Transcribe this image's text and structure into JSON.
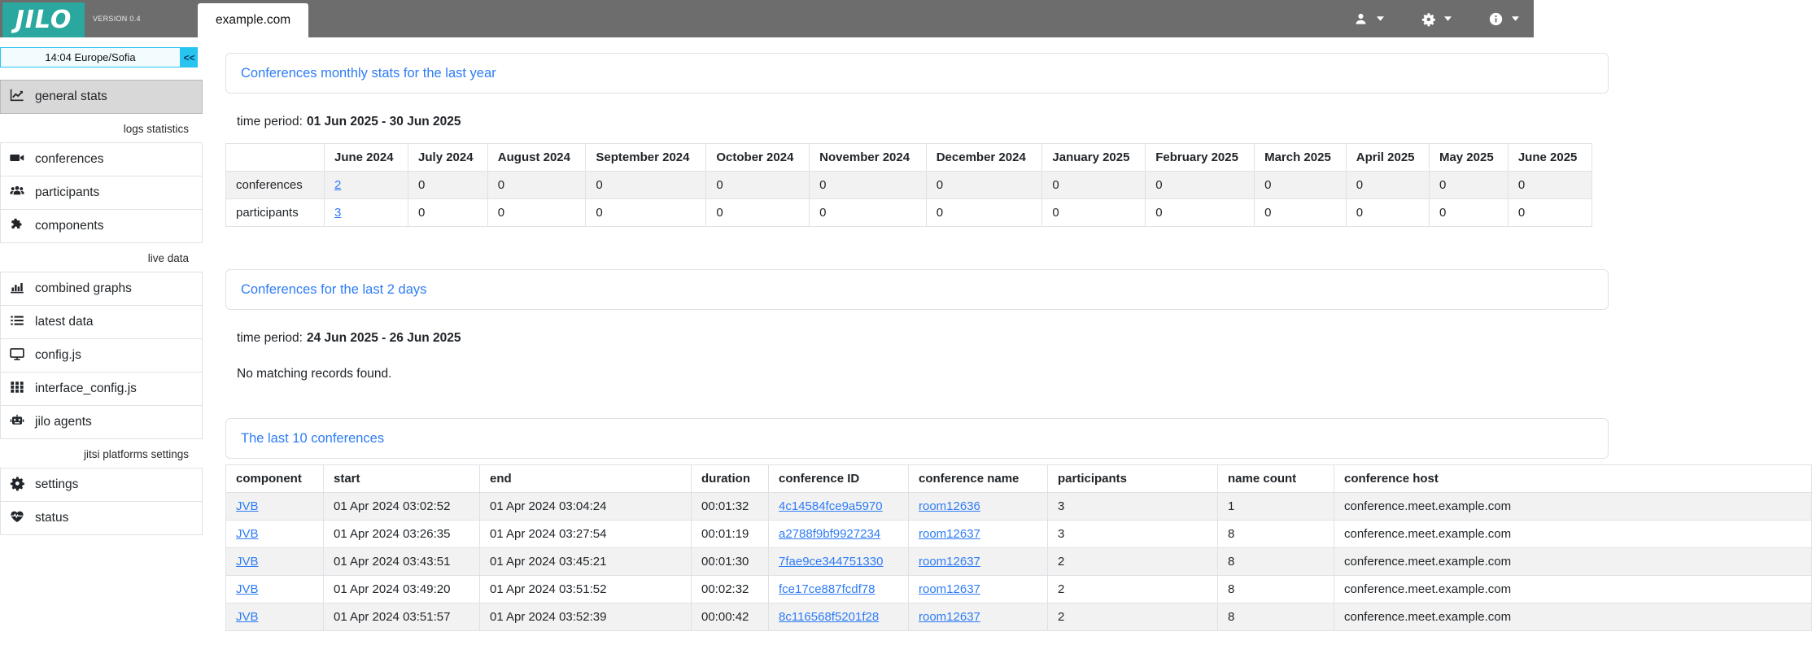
{
  "app": {
    "logo_text": "JILO",
    "version": "VERSION 0.4",
    "platform_tab": "example.com",
    "colors": {
      "topbar_gray": "#6d6d6d",
      "logo_teal": "#2aa79e",
      "accent_blue": "#2e7cf6",
      "collapse_cyan": "#27c4f0",
      "row_stripe": "#f2f2f2",
      "active_item_gray": "#d8d8d8"
    },
    "topbar_icons": [
      "user-icon",
      "gear-icon",
      "info-icon",
      "caret-down-icon"
    ]
  },
  "sidebar": {
    "clock": "14:04  Europe/Sofia",
    "collapse_button": "<<",
    "section_labels": {
      "logs_statistics": "logs statistics",
      "live_data": "live data",
      "jitsi_platforms_settings": "jitsi platforms settings"
    },
    "items": {
      "general_stats": "general stats",
      "conferences": "conferences",
      "participants": "participants",
      "components": "components",
      "combined_graphs": "combined graphs",
      "latest_data": "latest data",
      "config_js": "config.js",
      "interface_config_js": "interface_config.js",
      "jilo_agents": "jilo agents",
      "settings": "settings",
      "status": "status"
    },
    "item_icons": {
      "general_stats": "line-chart-icon",
      "conferences": "video-camera-icon",
      "participants": "users-icon",
      "components": "puzzle-icon",
      "combined_graphs": "bar-chart-icon",
      "latest_data": "list-icon",
      "config_js": "monitor-icon",
      "interface_config_js": "grid-icon",
      "jilo_agents": "robot-icon",
      "settings": "gear-icon",
      "status": "heart-pulse-icon"
    },
    "active_item": "general_stats"
  },
  "main": {
    "monthly_stats": {
      "title": "Conferences monthly stats for the last year",
      "time_period_label": "time period:",
      "time_period_value": "01 Jun 2025 - 30 Jun 2025",
      "table": {
        "headers": [
          "",
          "June 2024",
          "July 2024",
          "August 2024",
          "September 2024",
          "October 2024",
          "November 2024",
          "December 2024",
          "January 2025",
          "February 2025",
          "March 2025",
          "April 2025",
          "May 2025",
          "June 2025"
        ],
        "rows": [
          [
            "conferences",
            {
              "text": "2",
              "link": true
            },
            "0",
            "0",
            "0",
            "0",
            "0",
            "0",
            "0",
            "0",
            "0",
            "0",
            "0",
            "0"
          ],
          [
            "participants",
            {
              "text": "3",
              "link": true
            },
            "0",
            "0",
            "0",
            "0",
            "0",
            "0",
            "0",
            "0",
            "0",
            "0",
            "0",
            "0"
          ]
        ]
      }
    },
    "last_2_days": {
      "title": "Conferences for the last 2 days",
      "time_period_label": "time period:",
      "time_period_value": "24 Jun 2025 - 26 Jun 2025",
      "empty_message": "No matching records found."
    },
    "last_10": {
      "title": "The last 10 conferences",
      "table": {
        "headers": [
          "component",
          "start",
          "end",
          "duration",
          "conference ID",
          "conference name",
          "participants",
          "name count",
          "conference host"
        ],
        "rows": [
          [
            {
              "text": "JVB",
              "link": true
            },
            "01 Apr 2024 03:02:52",
            "01 Apr 2024 03:04:24",
            "00:01:32",
            {
              "text": "4c14584fce9a5970",
              "link": true
            },
            {
              "text": "room12636",
              "link": true
            },
            "3",
            "1",
            "conference.meet.example.com"
          ],
          [
            {
              "text": "JVB",
              "link": true
            },
            "01 Apr 2024 03:26:35",
            "01 Apr 2024 03:27:54",
            "00:01:19",
            {
              "text": "a2788f9bf9927234",
              "link": true
            },
            {
              "text": "room12637",
              "link": true
            },
            "3",
            "8",
            "conference.meet.example.com"
          ],
          [
            {
              "text": "JVB",
              "link": true
            },
            "01 Apr 2024 03:43:51",
            "01 Apr 2024 03:45:21",
            "00:01:30",
            {
              "text": "7fae9ce344751330",
              "link": true
            },
            {
              "text": "room12637",
              "link": true
            },
            "2",
            "8",
            "conference.meet.example.com"
          ],
          [
            {
              "text": "JVB",
              "link": true
            },
            "01 Apr 2024 03:49:20",
            "01 Apr 2024 03:51:52",
            "00:02:32",
            {
              "text": "fce17ce887fcdf78",
              "link": true
            },
            {
              "text": "room12637",
              "link": true
            },
            "2",
            "8",
            "conference.meet.example.com"
          ],
          [
            {
              "text": "JVB",
              "link": true
            },
            "01 Apr 2024 03:51:57",
            "01 Apr 2024 03:52:39",
            "00:00:42",
            {
              "text": "8c116568f5201f28",
              "link": true
            },
            {
              "text": "room12637",
              "link": true
            },
            "2",
            "8",
            "conference.meet.example.com"
          ]
        ]
      }
    }
  }
}
